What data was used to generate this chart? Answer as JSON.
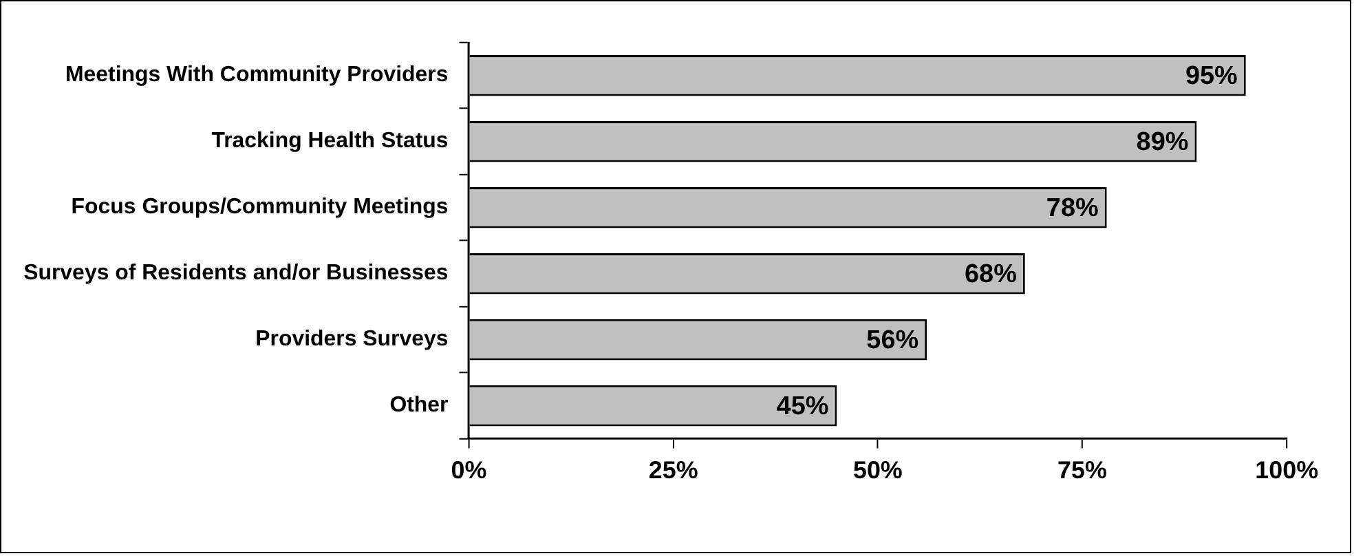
{
  "chart_data": {
    "type": "bar",
    "orientation": "horizontal",
    "categories": [
      "Meetings With Community Providers",
      "Tracking Health Status",
      "Focus Groups/Community Meetings",
      "Surveys of Residents and/or Businesses",
      "Providers Surveys",
      "Other"
    ],
    "values": [
      95,
      89,
      78,
      68,
      56,
      45
    ],
    "value_labels": [
      "95%",
      "89%",
      "78%",
      "68%",
      "56%",
      "45%"
    ],
    "color": "#c0c0c0",
    "xlim": [
      0,
      100
    ],
    "xticks": [
      {
        "value": 0,
        "label": "0%"
      },
      {
        "value": 25,
        "label": "25%"
      },
      {
        "value": 50,
        "label": "50%"
      },
      {
        "value": 75,
        "label": "75%"
      },
      {
        "value": 100,
        "label": "100%"
      }
    ],
    "grid": false,
    "legend": false
  }
}
